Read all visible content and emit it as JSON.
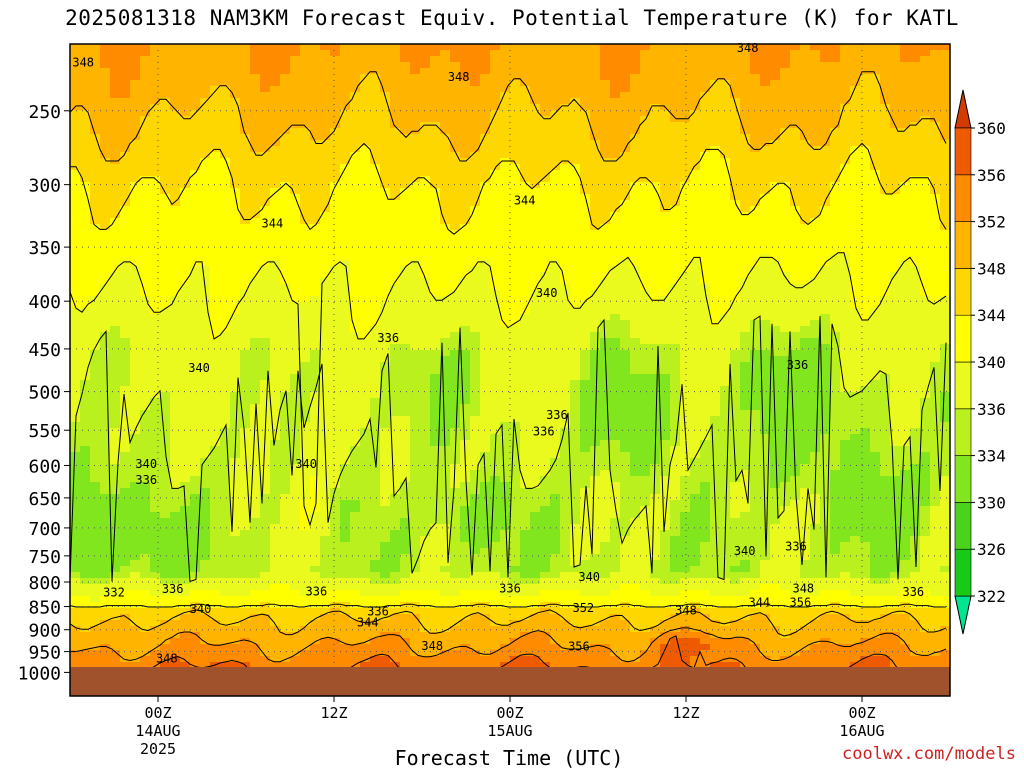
{
  "title": "2025081318 NAM3KM Forecast Equiv. Potential Temperature (K) for KATL",
  "watermark": "coolwx.com/models",
  "chart_data": {
    "type": "heatmap",
    "title": "2025081318 NAM3KM Forecast Equiv. Potential Temperature (K) for KATL",
    "xlabel": "Forecast Time (UTC)",
    "ylabel": "",
    "y_scale": "log",
    "y_reversed": true,
    "ylim": [
      1000,
      200
    ],
    "xlim": [
      -6,
      54
    ],
    "y_ticks": [
      250,
      300,
      350,
      400,
      450,
      500,
      550,
      600,
      650,
      700,
      750,
      800,
      850,
      900,
      950,
      1000
    ],
    "x_ticks": [
      {
        "hour": 0,
        "label": "00Z",
        "sub1": "14AUG",
        "sub2": "2025"
      },
      {
        "hour": 12,
        "label": "12Z",
        "sub1": "",
        "sub2": ""
      },
      {
        "hour": 24,
        "label": "00Z",
        "sub1": "15AUG",
        "sub2": ""
      },
      {
        "hour": 36,
        "label": "12Z",
        "sub1": "",
        "sub2": ""
      },
      {
        "hour": 48,
        "label": "00Z",
        "sub1": "16AUG",
        "sub2": ""
      }
    ],
    "grid": true,
    "colorbar": {
      "levels": [
        322,
        326,
        330,
        334,
        336,
        340,
        344,
        348,
        352,
        356,
        360
      ],
      "colors": [
        "#00e690",
        "#19c917",
        "#4bd21c",
        "#82e61e",
        "#b9f01e",
        "#eafa1e",
        "#ffff00",
        "#ffd700",
        "#ffb400",
        "#ff8c00",
        "#ee5a00",
        "#d23c00"
      ],
      "position": "right"
    },
    "contour_labels": [
      {
        "hour": -5.1,
        "p": 222,
        "value": "348"
      },
      {
        "hour": 20.5,
        "p": 230,
        "value": "348"
      },
      {
        "hour": 40.2,
        "p": 214,
        "value": "348"
      },
      {
        "hour": 7.8,
        "p": 330,
        "value": "344"
      },
      {
        "hour": 25.0,
        "p": 312,
        "value": "344"
      },
      {
        "hour": 26.5,
        "p": 392,
        "value": "340"
      },
      {
        "hour": 2.8,
        "p": 472,
        "value": "340"
      },
      {
        "hour": 15.7,
        "p": 438,
        "value": "336"
      },
      {
        "hour": 43.6,
        "p": 468,
        "value": "336"
      },
      {
        "hour": 27.2,
        "p": 530,
        "value": "336"
      },
      {
        "hour": 26.3,
        "p": 552,
        "value": "336"
      },
      {
        "hour": -0.8,
        "p": 598,
        "value": "340"
      },
      {
        "hour": 10.1,
        "p": 598,
        "value": "340"
      },
      {
        "hour": -0.8,
        "p": 622,
        "value": "336"
      },
      {
        "hour": -3.0,
        "p": 821,
        "value": "332"
      },
      {
        "hour": 1.0,
        "p": 814,
        "value": "336"
      },
      {
        "hour": 2.9,
        "p": 855,
        "value": "340"
      },
      {
        "hour": 10.8,
        "p": 819,
        "value": "336"
      },
      {
        "hour": 15.0,
        "p": 860,
        "value": "336"
      },
      {
        "hour": 14.3,
        "p": 884,
        "value": "344"
      },
      {
        "hour": 24.0,
        "p": 813,
        "value": "336"
      },
      {
        "hour": 29.4,
        "p": 790,
        "value": "340"
      },
      {
        "hour": 29.0,
        "p": 853,
        "value": "352"
      },
      {
        "hour": 36.0,
        "p": 858,
        "value": "348"
      },
      {
        "hour": 40.0,
        "p": 741,
        "value": "340"
      },
      {
        "hour": 43.5,
        "p": 733,
        "value": "336"
      },
      {
        "hour": 44.0,
        "p": 813,
        "value": "348"
      },
      {
        "hour": 41.0,
        "p": 842,
        "value": "344"
      },
      {
        "hour": 43.8,
        "p": 842,
        "value": "356"
      },
      {
        "hour": 51.5,
        "p": 820,
        "value": "336"
      },
      {
        "hour": 18.7,
        "p": 937,
        "value": "348"
      },
      {
        "hour": 28.7,
        "p": 938,
        "value": "356"
      },
      {
        "hour": 0.6,
        "p": 966,
        "value": "348"
      }
    ]
  }
}
